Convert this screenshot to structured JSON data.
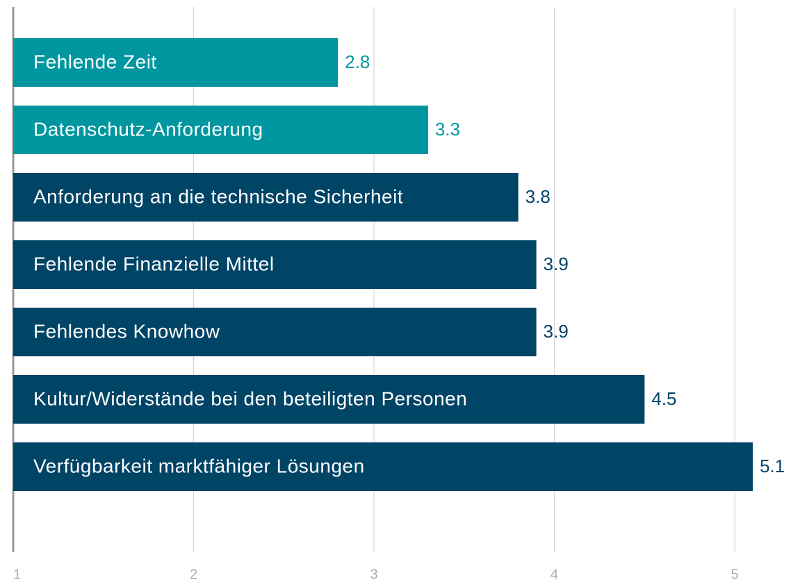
{
  "chart_data": {
    "type": "barh",
    "categories": [
      "Fehlende Zeit",
      "Datenschutz-Anforderung",
      "Anforderung an die technische Sicherheit",
      "Fehlende Finanzielle Mittel",
      "Fehlendes Knowhow",
      "Kultur/Widerstände bei den beteiligten Personen",
      "Verfügbarkeit marktfähiger Lösungen"
    ],
    "values": [
      2.8,
      3.3,
      3.8,
      3.9,
      3.9,
      4.5,
      5.1
    ],
    "colors": [
      "#0096a0",
      "#0096a0",
      "#004466",
      "#004466",
      "#004466",
      "#004466",
      "#004466"
    ],
    "xlim": [
      1,
      5.3
    ],
    "xticks": [
      1,
      2,
      3,
      4,
      5
    ],
    "grid": true
  }
}
